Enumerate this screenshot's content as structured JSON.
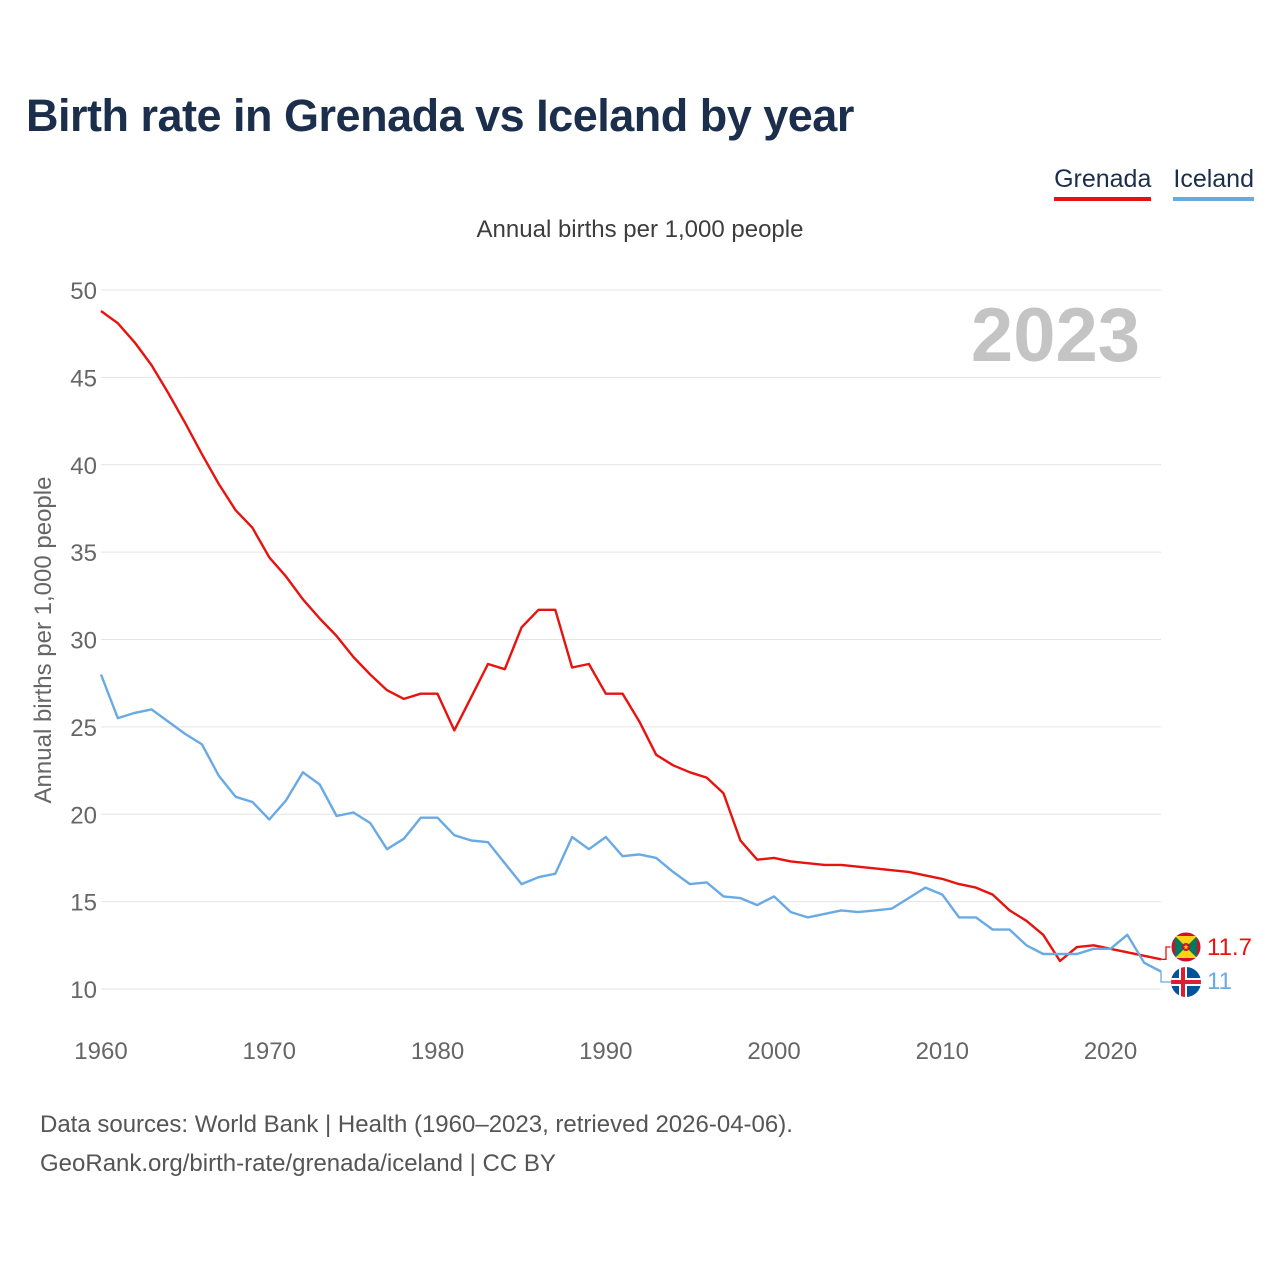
{
  "title": "Birth rate in Grenada vs Iceland by year",
  "legend": {
    "grenada": "Grenada",
    "iceland": "Iceland"
  },
  "footer": {
    "line1": "Data sources: World Bank | Health (1960–2023, retrieved 2026-04-06).",
    "line2": "GeoRank.org/birth-rate/grenada/iceland | CC BY"
  },
  "colors": {
    "grenada": "#e8130f",
    "iceland": "#6aaae4",
    "title": "#1b2e4b",
    "watermark": "#c4c4c4"
  },
  "chart_data": {
    "type": "line",
    "title": "Birth rate in Grenada vs Iceland by year",
    "subtitle": "Annual births per 1,000 people",
    "ylabel": "Annual births per 1,000 people",
    "xlabel": "",
    "year_label": "2023",
    "xlim": [
      1960,
      2023
    ],
    "ylim": [
      10,
      50
    ],
    "x_ticks": [
      1960,
      1970,
      1980,
      1990,
      2000,
      2010,
      2020
    ],
    "y_ticks": [
      10,
      15,
      20,
      25,
      30,
      35,
      40,
      45,
      50
    ],
    "grid": true,
    "legend_position": "top-right",
    "x": [
      1960,
      1961,
      1962,
      1963,
      1964,
      1965,
      1966,
      1967,
      1968,
      1969,
      1970,
      1971,
      1972,
      1973,
      1974,
      1975,
      1976,
      1977,
      1978,
      1979,
      1980,
      1981,
      1982,
      1983,
      1984,
      1985,
      1986,
      1987,
      1988,
      1989,
      1990,
      1991,
      1992,
      1993,
      1994,
      1995,
      1996,
      1997,
      1998,
      1999,
      2000,
      2001,
      2002,
      2003,
      2004,
      2005,
      2006,
      2007,
      2008,
      2009,
      2010,
      2011,
      2012,
      2013,
      2014,
      2015,
      2016,
      2017,
      2018,
      2019,
      2020,
      2021,
      2022,
      2023
    ],
    "series": [
      {
        "name": "Grenada",
        "color": "#e8130f",
        "end_label": "11.7",
        "values": [
          48.8,
          48.1,
          47.0,
          45.7,
          44.1,
          42.4,
          40.6,
          38.9,
          37.4,
          36.4,
          34.7,
          33.6,
          32.3,
          31.2,
          30.2,
          29.0,
          28.0,
          27.1,
          26.6,
          26.9,
          26.9,
          24.8,
          26.7,
          28.6,
          28.3,
          30.7,
          31.7,
          31.7,
          28.4,
          28.6,
          26.9,
          26.9,
          25.3,
          23.4,
          22.8,
          22.4,
          22.1,
          21.2,
          18.5,
          17.4,
          17.5,
          17.3,
          17.2,
          17.1,
          17.1,
          17.0,
          16.9,
          16.8,
          16.7,
          16.5,
          16.3,
          16.0,
          15.8,
          15.4,
          14.5,
          13.9,
          13.1,
          11.6,
          12.4,
          12.5,
          12.3,
          12.1,
          11.9,
          11.7
        ]
      },
      {
        "name": "Iceland",
        "color": "#6aaae4",
        "end_label": "11",
        "values": [
          28.0,
          25.5,
          25.8,
          26.0,
          25.3,
          24.6,
          24.0,
          22.2,
          21.0,
          20.7,
          19.7,
          20.8,
          22.4,
          21.7,
          19.9,
          20.1,
          19.5,
          18.0,
          18.6,
          19.8,
          19.8,
          18.8,
          18.5,
          18.4,
          17.2,
          16.0,
          16.4,
          16.6,
          18.7,
          18.0,
          18.7,
          17.6,
          17.7,
          17.5,
          16.7,
          16.0,
          16.1,
          15.3,
          15.2,
          14.8,
          15.3,
          14.4,
          14.1,
          14.3,
          14.5,
          14.4,
          14.5,
          14.6,
          15.2,
          15.8,
          15.4,
          14.1,
          14.1,
          13.4,
          13.4,
          12.5,
          12.0,
          12.0,
          12.0,
          12.3,
          12.3,
          13.1,
          11.5,
          11.0
        ]
      }
    ]
  }
}
